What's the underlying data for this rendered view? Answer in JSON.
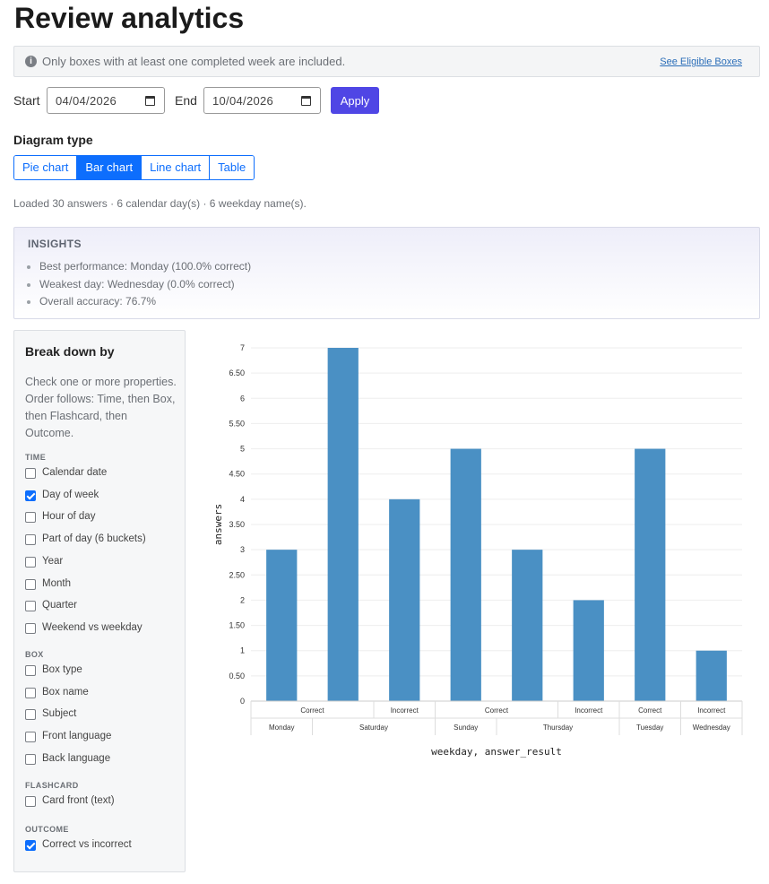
{
  "page": {
    "title": "Review analytics"
  },
  "notice": {
    "icon": "info-icon",
    "text": "Only boxes with at least one completed week are included.",
    "link": "See Eligible Boxes"
  },
  "range": {
    "start_label": "Start",
    "start_value": "04/04/2026",
    "end_label": "End",
    "end_value": "10/04/2026",
    "apply_label": "Apply"
  },
  "diagram": {
    "title": "Diagram type",
    "options": [
      "Pie chart",
      "Bar chart",
      "Line chart",
      "Table"
    ],
    "selected": "Bar chart"
  },
  "status": {
    "loaded": "Loaded 30 answers · 6 calendar day(s) · 6 weekday name(s)."
  },
  "insights": {
    "title": "INSIGHTS",
    "items": [
      "Best performance: Monday (100.0% correct)",
      "Weakest day: Wednesday (0.0% correct)",
      "Overall accuracy: 76.7%"
    ]
  },
  "sidebar": {
    "title": "Break down by",
    "description": "Check one or more properties. Order follows: Time, then Box, then Flashcard, then Outcome.",
    "groups": [
      {
        "label": "TIME",
        "options": [
          {
            "label": "Calendar date",
            "checked": false
          },
          {
            "label": "Day of week",
            "checked": true
          },
          {
            "label": "Hour of day",
            "checked": false
          },
          {
            "label": "Part of day (6 buckets)",
            "checked": false
          },
          {
            "label": "Year",
            "checked": false
          },
          {
            "label": "Month",
            "checked": false
          },
          {
            "label": "Quarter",
            "checked": false
          },
          {
            "label": "Weekend vs weekday",
            "checked": false
          }
        ]
      },
      {
        "label": "BOX",
        "options": [
          {
            "label": "Box type",
            "checked": false
          },
          {
            "label": "Box name",
            "checked": false
          },
          {
            "label": "Subject",
            "checked": false
          },
          {
            "label": "Front language",
            "checked": false
          },
          {
            "label": "Back language",
            "checked": false
          }
        ]
      },
      {
        "label": "FLASHCARD",
        "options": [
          {
            "label": "Card front (text)",
            "checked": false
          }
        ]
      },
      {
        "label": "OUTCOME",
        "options": [
          {
            "label": "Correct vs incorrect",
            "checked": true
          }
        ]
      }
    ]
  },
  "chart_data": {
    "type": "bar",
    "color": "#4a90c4",
    "ylabel": "answers",
    "xlabel": "weekday, answer_result",
    "ylim": [
      0,
      7
    ],
    "yticks": [
      "0",
      "0.50",
      "1",
      "1.50",
      "2",
      "2.50",
      "3",
      "3.50",
      "4",
      "4.50",
      "5",
      "5.50",
      "6",
      "6.50",
      "7"
    ],
    "bars": [
      {
        "weekday": "Monday",
        "answer_result": "Correct",
        "value": 3
      },
      {
        "weekday": "Saturday",
        "answer_result": "Correct",
        "value": 7
      },
      {
        "weekday": "Saturday",
        "answer_result": "Incorrect",
        "value": 4
      },
      {
        "weekday": "Sunday",
        "answer_result": "Correct",
        "value": 5
      },
      {
        "weekday": "Thursday",
        "answer_result": "Correct",
        "value": 3
      },
      {
        "weekday": "Thursday",
        "answer_result": "Incorrect",
        "value": 2
      },
      {
        "weekday": "Tuesday",
        "answer_result": "Correct",
        "value": 5
      },
      {
        "weekday": "Wednesday",
        "answer_result": "Incorrect",
        "value": 1
      }
    ],
    "result_groups": [
      {
        "label": "Correct",
        "start": 0,
        "end": 1
      },
      {
        "label": "Incorrect",
        "start": 2,
        "end": 2
      },
      {
        "label": "Correct",
        "start": 3,
        "end": 4
      },
      {
        "label": "Incorrect",
        "start": 5,
        "end": 5
      },
      {
        "label": "Correct",
        "start": 6,
        "end": 6
      },
      {
        "label": "Incorrect",
        "start": 7,
        "end": 7
      }
    ],
    "weekday_groups": [
      {
        "label": "Monday",
        "start": 0,
        "end": 0
      },
      {
        "label": "Saturday",
        "start": 1,
        "end": 2
      },
      {
        "label": "Sunday",
        "start": 3,
        "end": 3
      },
      {
        "label": "Thursday",
        "start": 4,
        "end": 5
      },
      {
        "label": "Tuesday",
        "start": 6,
        "end": 6
      },
      {
        "label": "Wednesday",
        "start": 7,
        "end": 7
      }
    ]
  }
}
